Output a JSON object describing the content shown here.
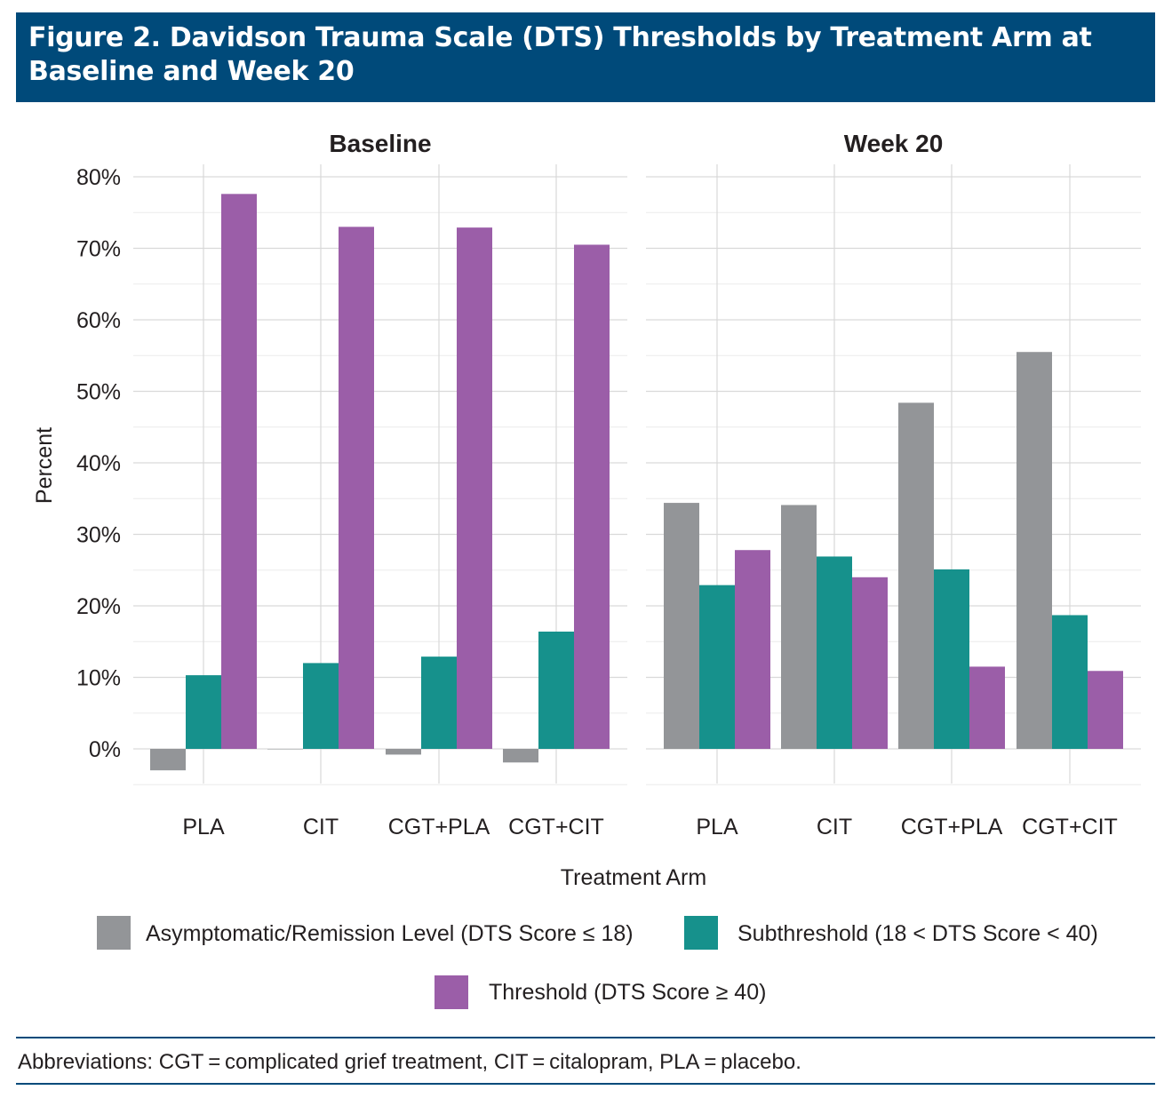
{
  "figure": {
    "title": "Figure 2. Davidson Trauma Scale (DTS) Thresholds by Treatment Arm at Baseline and Week 20"
  },
  "footnote": "Abbreviations: CGT = complicated grief treatment, CIT = citalopram, PLA = placebo.",
  "colors": {
    "asymptomatic": "#939598",
    "subthreshold": "#16918c",
    "threshold": "#9b5ea8",
    "title_bg": "#004a7a",
    "grid": "#d9d9d9"
  },
  "chart_data": {
    "type": "bar",
    "xlabel": "Treatment Arm",
    "ylabel": "Percent",
    "ylim": [
      -5,
      80
    ],
    "yticks": [
      0,
      10,
      20,
      30,
      40,
      50,
      60,
      70,
      80
    ],
    "ytick_labels": [
      "0%",
      "10%",
      "20%",
      "30%",
      "40%",
      "50%",
      "60%",
      "70%",
      "80%"
    ],
    "categories": [
      "PLA",
      "CIT",
      "CGT+PLA",
      "CGT+CIT"
    ],
    "grid": true,
    "legend_position": "bottom",
    "panels": [
      {
        "title": "Baseline",
        "series": [
          {
            "name": "Asymptomatic/Remission Level (DTS Score ≤ 18)",
            "values": [
              -3,
              0,
              -0.8,
              -1.9
            ]
          },
          {
            "name": "Subthreshold (18 < DTS Score < 40)",
            "values": [
              10.3,
              12.0,
              12.9,
              16.4
            ]
          },
          {
            "name": "Threshold (DTS Score ≥ 40)",
            "values": [
              77.6,
              73.0,
              72.9,
              70.5
            ]
          }
        ]
      },
      {
        "title": "Week 20",
        "series": [
          {
            "name": "Asymptomatic/Remission Level (DTS Score ≤ 18)",
            "values": [
              34.4,
              34.1,
              48.4,
              55.5
            ]
          },
          {
            "name": "Subthreshold (18 < DTS Score < 40)",
            "values": [
              22.9,
              26.9,
              25.1,
              18.7
            ]
          },
          {
            "name": "Threshold (DTS Score ≥ 40)",
            "values": [
              27.8,
              24.0,
              11.5,
              10.9
            ]
          }
        ]
      }
    ]
  }
}
